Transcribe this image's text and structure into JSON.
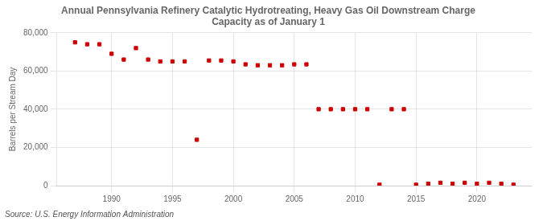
{
  "chart_data": {
    "type": "scatter",
    "title": "Annual Pennsylvania Refinery Catalytic Hydrotreating, Heavy Gas Oil Downstream Charge\nCapacity as of January 1",
    "ylabel": "Barrels per Stream Day",
    "annotations": [
      "Source: U.S. Energy Information Administration"
    ],
    "x": [
      1987,
      1988,
      1989,
      1990,
      1991,
      1992,
      1993,
      1994,
      1995,
      1996,
      1997,
      1998,
      1999,
      2000,
      2001,
      2002,
      2003,
      2004,
      2005,
      2006,
      2007,
      2008,
      2009,
      2010,
      2011,
      2012,
      2013,
      2014,
      2015,
      2016,
      2017,
      2018,
      2019,
      2020,
      2021,
      2022,
      2023
    ],
    "values": [
      75000,
      74000,
      74000,
      69000,
      66000,
      72000,
      66000,
      65000,
      65000,
      65000,
      24000,
      65500,
      65500,
      65000,
      63500,
      63000,
      63000,
      63000,
      63500,
      63500,
      40000,
      40000,
      40000,
      40000,
      40000,
      500,
      40000,
      40000,
      500,
      1000,
      1500,
      1000,
      1500,
      1000,
      1500,
      1000,
      500
    ],
    "color": "#cc0000",
    "marker": "square",
    "xlim": [
      1985.5,
      2024.5
    ],
    "xticks": [
      1990,
      1995,
      2000,
      2005,
      2010,
      2015,
      2020
    ],
    "ylim": [
      0,
      80000
    ],
    "yticks": [
      0,
      {
        "value": 20000,
        "label": "20,000"
      },
      {
        "value": 40000,
        "label": "40,000"
      },
      {
        "value": 60000,
        "label": "60,000"
      },
      {
        "value": 80000,
        "label": "80,000"
      }
    ],
    "grid": true
  }
}
